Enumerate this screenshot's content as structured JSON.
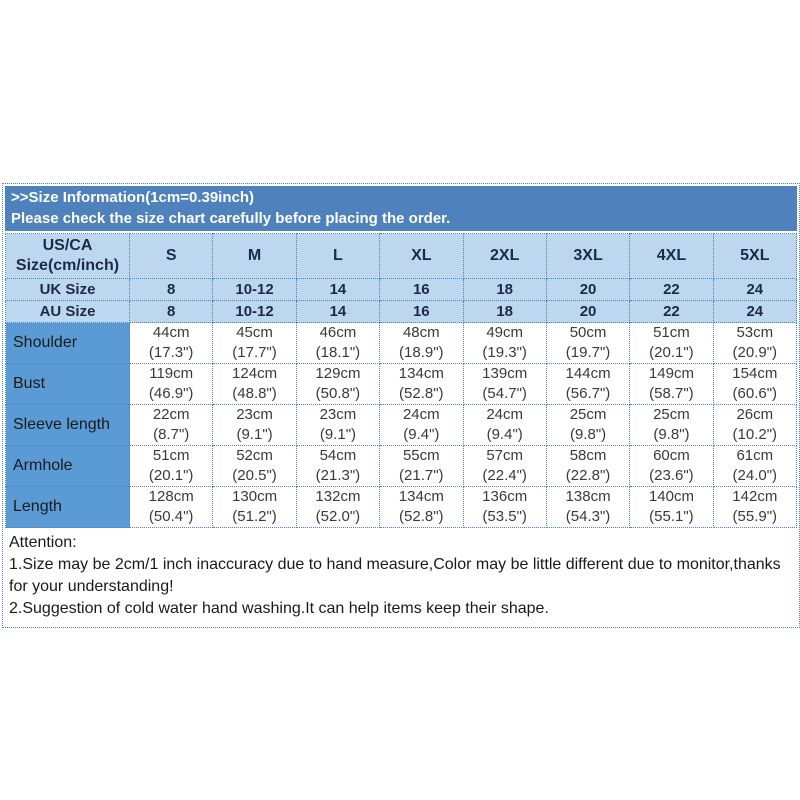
{
  "header": {
    "title": ">>Size Information(1cm=0.39inch)",
    "subtitle": "Please check the size chart carefully before placing the order."
  },
  "table": {
    "corner_label": "US/CA\nSize(cm/inch)",
    "size_headers": [
      "S",
      "M",
      "L",
      "XL",
      "2XL",
      "3XL",
      "4XL",
      "5XL"
    ],
    "size_system_rows": [
      {
        "label": "UK Size",
        "values": [
          "8",
          "10-12",
          "14",
          "16",
          "18",
          "20",
          "22",
          "24"
        ]
      },
      {
        "label": "AU Size",
        "values": [
          "8",
          "10-12",
          "14",
          "16",
          "18",
          "20",
          "22",
          "24"
        ]
      }
    ],
    "measurement_rows": [
      {
        "label": "Shoulder",
        "values": [
          "44cm\n(17.3\")",
          "45cm\n(17.7\")",
          "46cm\n(18.1\")",
          "48cm\n(18.9\")",
          "49cm\n(19.3\")",
          "50cm\n(19.7\")",
          "51cm\n(20.1\")",
          "53cm\n(20.9\")"
        ]
      },
      {
        "label": "Bust",
        "values": [
          "119cm\n(46.9\")",
          "124cm\n(48.8\")",
          "129cm\n(50.8\")",
          "134cm\n(52.8\")",
          "139cm\n(54.7\")",
          "144cm\n(56.7\")",
          "149cm\n(58.7\")",
          "154cm\n(60.6\")"
        ]
      },
      {
        "label": "Sleeve length",
        "values": [
          "22cm\n(8.7\")",
          "23cm\n(9.1\")",
          "23cm\n(9.1\")",
          "24cm\n(9.4\")",
          "24cm\n(9.4\")",
          "25cm\n(9.8\")",
          "25cm\n(9.8\")",
          "26cm\n(10.2\")"
        ]
      },
      {
        "label": "Armhole",
        "values": [
          "51cm\n(20.1\")",
          "52cm\n(20.5\")",
          "54cm\n(21.3\")",
          "55cm\n(21.7\")",
          "57cm\n(22.4\")",
          "58cm\n(22.8\")",
          "60cm\n(23.6\")",
          "61cm\n(24.0\")"
        ]
      },
      {
        "label": "Length",
        "values": [
          "128cm\n(50.4\")",
          "130cm\n(51.2\")",
          "132cm\n(52.0\")",
          "134cm\n(52.8\")",
          "136cm\n(53.5\")",
          "138cm\n(54.3\")",
          "140cm\n(55.1\")",
          "142cm\n(55.9\")"
        ]
      }
    ]
  },
  "attention": {
    "heading": "Attention:",
    "lines": [
      "1.Size may be 2cm/1 inch inaccuracy due to hand measure,Color may be little different due to monitor,thanks for your understanding!",
      "2.Suggestion of cold water hand washing.It can help items keep their shape."
    ]
  },
  "colors": {
    "band_bg": "#4f81bd",
    "band_text": "#ffffff",
    "header_row_bg": "#bdd7ee",
    "label_col_bg": "#5b9bd5",
    "border": "#4f81bd"
  }
}
